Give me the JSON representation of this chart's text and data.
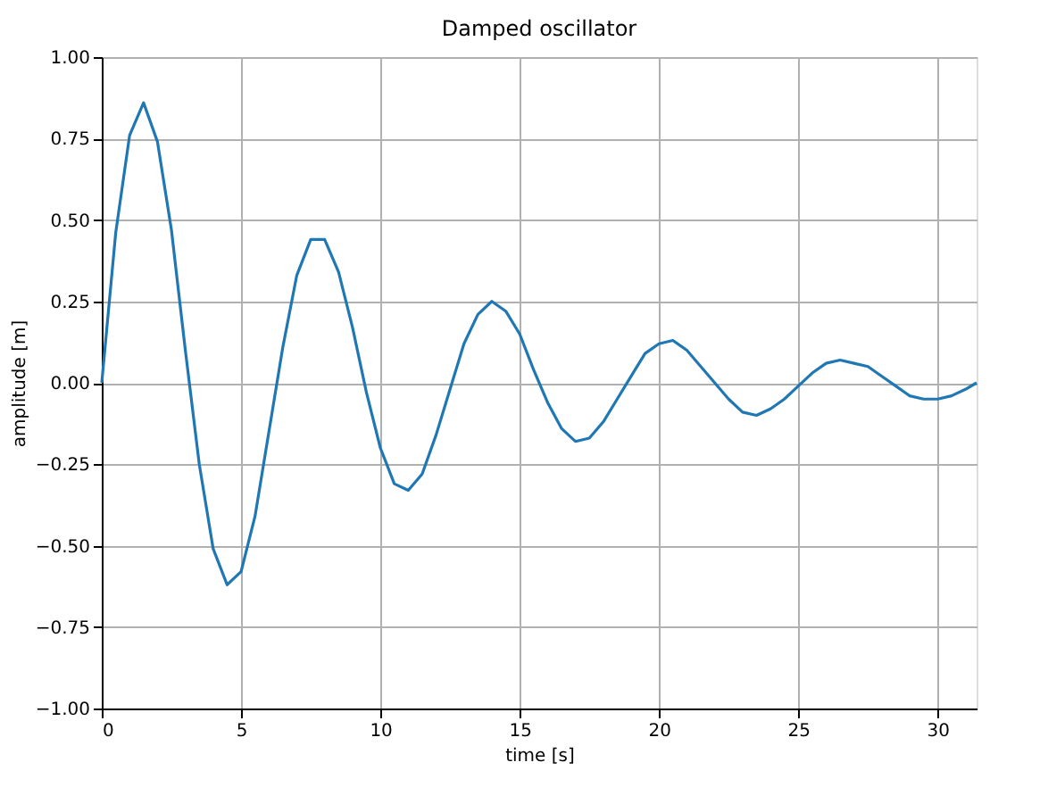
{
  "chart_data": {
    "type": "line",
    "title": "Damped oscillator",
    "xlabel": "time [s]",
    "ylabel": "amplitude [m]",
    "x": [
      0,
      0.5,
      1,
      1.5,
      2,
      2.5,
      3,
      3.5,
      4,
      4.5,
      5,
      5.5,
      6,
      6.5,
      7,
      7.5,
      8,
      8.5,
      9,
      9.5,
      10,
      10.5,
      11,
      11.5,
      12,
      12.5,
      13,
      13.5,
      14,
      14.5,
      15,
      15.5,
      16,
      16.5,
      17,
      17.5,
      18,
      18.5,
      19,
      19.5,
      20,
      20.5,
      21,
      21.5,
      22,
      22.5,
      23,
      23.5,
      24,
      24.5,
      25,
      25.5,
      26,
      26.5,
      27,
      27.5,
      28,
      28.5,
      29,
      29.5,
      30,
      30.5,
      31,
      31.4
    ],
    "series": [
      {
        "color": "#1f77b4",
        "values": [
          0,
          0.46,
          0.76,
          0.86,
          0.74,
          0.47,
          0.1,
          -0.25,
          -0.51,
          -0.62,
          -0.58,
          -0.41,
          -0.15,
          0.11,
          0.33,
          0.44,
          0.44,
          0.34,
          0.17,
          -0.03,
          -0.2,
          -0.31,
          -0.33,
          -0.28,
          -0.16,
          -0.02,
          0.12,
          0.21,
          0.25,
          0.22,
          0.15,
          0.04,
          -0.06,
          -0.14,
          -0.18,
          -0.17,
          -0.12,
          -0.05,
          0.02,
          0.09,
          0.12,
          0.13,
          0.1,
          0.05,
          0,
          -0.05,
          -0.09,
          -0.1,
          -0.08,
          -0.05,
          -0.01,
          0.03,
          0.06,
          0.07,
          0.06,
          0.05,
          0.02,
          -0.01,
          -0.04,
          -0.05,
          -0.05,
          -0.04,
          -0.02,
          0
        ]
      }
    ],
    "xlim": [
      0,
      31.4
    ],
    "xticks": [
      0,
      5,
      10,
      15,
      20,
      25,
      30
    ],
    "ylim": [
      -1,
      1
    ],
    "yticks": [
      {
        "value": -1,
        "label": "−1.00"
      },
      {
        "value": -0.75,
        "label": "−0.75"
      },
      {
        "value": -0.5,
        "label": "−0.50"
      },
      {
        "value": -0.25,
        "label": "−0.25"
      },
      {
        "value": 0,
        "label": "0.00"
      },
      {
        "value": 0.25,
        "label": "0.25"
      },
      {
        "value": 0.5,
        "label": "0.50"
      },
      {
        "value": 0.75,
        "label": "0.75"
      },
      {
        "value": 1,
        "label": "1.00"
      }
    ],
    "grid": true,
    "marker": "none",
    "line_style": "solid"
  }
}
